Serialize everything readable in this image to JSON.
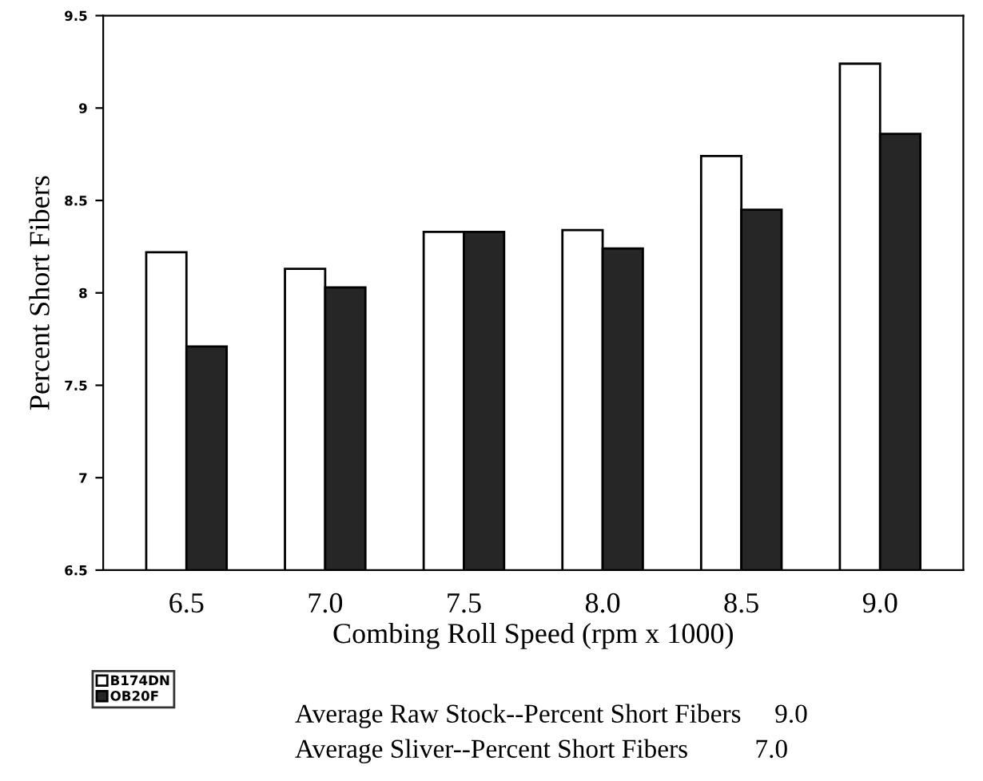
{
  "chart_data": {
    "type": "bar",
    "xlabel": "Combing Roll Speed (rpm x 1000)",
    "ylabel": "Percent Short Fibers",
    "categories": [
      "6.5",
      "7.0",
      "7.5",
      "8.0",
      "8.5",
      "9.0"
    ],
    "series": [
      {
        "name": "B174DN",
        "color": "#ffffff",
        "values": [
          8.22,
          8.13,
          8.33,
          8.34,
          8.74,
          9.24
        ]
      },
      {
        "name": "OB20F",
        "color": "#262626",
        "values": [
          7.71,
          8.03,
          8.33,
          8.24,
          8.45,
          8.86
        ]
      }
    ],
    "ylim": [
      6.5,
      9.5
    ],
    "yticks": [
      6.5,
      7,
      7.5,
      8,
      8.5,
      9,
      9.5
    ],
    "grid": false,
    "legend": "bottom left",
    "annotations": [
      "Average Raw Stock--Percent Short Fibers     9.0",
      "Average Sliver--Percent Short Fibers          7.0"
    ]
  }
}
